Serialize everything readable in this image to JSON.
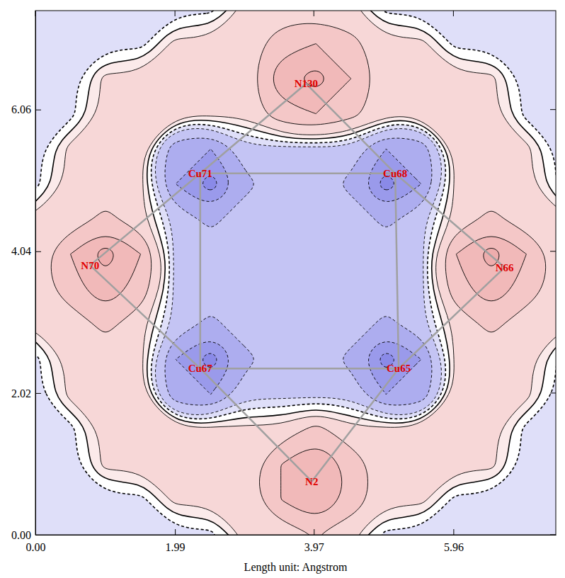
{
  "chart_data": {
    "type": "contour",
    "x_label": "Length unit: Angstrom",
    "xlim": [
      0,
      7.42
    ],
    "ylim": [
      0,
      7.47
    ],
    "xticks": [
      {
        "value": 0,
        "label": "0.00"
      },
      1.99,
      3.97,
      5.96
    ],
    "yticks": [
      {
        "value": 0,
        "label": "0.00"
      },
      2.02,
      4.04,
      6.06
    ],
    "levels": [
      -2.5,
      -1.5,
      -0.8,
      -0.3,
      -0.1,
      0.1,
      0.3,
      0.8,
      1.5,
      2.5
    ],
    "field": {
      "x": [
        0,
        0.5,
        1,
        1.5,
        2,
        2.5,
        3,
        3.5,
        4,
        4.5,
        5,
        5.5,
        6,
        6.5,
        7,
        7.5
      ],
      "y": [
        0,
        0.5,
        1,
        1.5,
        2,
        2.5,
        3,
        3.5,
        4,
        4.5,
        5,
        5.5,
        6,
        6.5,
        7,
        7.5
      ],
      "values": [
        [
          -0.2,
          -0.2,
          -0.2,
          -0.2,
          -0.2,
          -0.2,
          0.4,
          0.4,
          0.8,
          0.4,
          -0.2,
          -0.2,
          -0.2,
          -0.2,
          -0.2,
          -0.2
        ],
        [
          -0.2,
          -0.2,
          -0.2,
          -0.2,
          0.4,
          0.4,
          0.4,
          1.5,
          2.5,
          1.2,
          0.4,
          0.4,
          -0.2,
          -0.2,
          -0.2,
          -0.2
        ],
        [
          -0.2,
          -0.2,
          0.4,
          0.4,
          0.4,
          0.4,
          0.4,
          1.5,
          2.5,
          1.2,
          0.4,
          0.4,
          0.4,
          0.4,
          -0.2,
          -0.2
        ],
        [
          -0.2,
          -0.2,
          0.4,
          0.4,
          0.4,
          0.4,
          0.4,
          0.4,
          1,
          0.4,
          0.4,
          0.4,
          0.4,
          0.4,
          -0.2,
          -0.2
        ],
        [
          -0.2,
          0.4,
          0.4,
          0.4,
          -1.2,
          -1.5,
          -0.4,
          -0.4,
          -0.4,
          -0.4,
          -1.5,
          -1.2,
          0.4,
          0.4,
          0.4,
          -0.2
        ],
        [
          -0.2,
          0.4,
          0.4,
          0.4,
          -1.5,
          -3,
          -1,
          -0.4,
          -0.4,
          -1,
          -3,
          -1.5,
          0.4,
          0.4,
          0.4,
          -0.2
        ],
        [
          0.4,
          0.4,
          1,
          0.4,
          -0.4,
          -1,
          -0.4,
          -0.4,
          -0.4,
          -0.4,
          -1,
          -0.4,
          0.4,
          1,
          0.4,
          0.4
        ],
        [
          0.4,
          1.2,
          2,
          1.2,
          -0.4,
          -0.4,
          -0.4,
          -0.4,
          -0.4,
          -0.4,
          -0.4,
          -0.4,
          1.2,
          2,
          1.2,
          0.4
        ],
        [
          0.4,
          1.5,
          3,
          1.5,
          -0.4,
          -0.4,
          -0.4,
          -0.4,
          -0.4,
          -0.4,
          -0.4,
          -0.4,
          1.5,
          3,
          1.5,
          0.4
        ],
        [
          0.4,
          0.4,
          1,
          0.4,
          -0.4,
          -1,
          -0.4,
          -0.4,
          -0.4,
          -0.4,
          -1,
          -0.4,
          0.4,
          1,
          0.4,
          0.4
        ],
        [
          -0.2,
          0.4,
          0.4,
          0.4,
          -1.5,
          -3,
          -1,
          -0.4,
          -0.4,
          -1,
          -3,
          -1.5,
          0.4,
          0.4,
          0.4,
          -0.2
        ],
        [
          -0.2,
          0.4,
          0.4,
          0.4,
          -1.2,
          -1.5,
          -0.4,
          -0.4,
          -0.4,
          -0.4,
          -1.5,
          -1.2,
          0.4,
          0.4,
          0.4,
          -0.2
        ],
        [
          -0.2,
          -0.2,
          0.4,
          0.4,
          0.4,
          0.4,
          0.4,
          1.2,
          1.5,
          1,
          0.4,
          0.4,
          0.4,
          0.4,
          -0.2,
          -0.2
        ],
        [
          -0.2,
          -0.2,
          0.4,
          0.4,
          0.4,
          0.4,
          0.4,
          2,
          3,
          1.5,
          0.4,
          0.4,
          0.4,
          0.4,
          -0.2,
          -0.2
        ],
        [
          -0.2,
          -0.2,
          -0.2,
          -0.2,
          0.4,
          0.4,
          0.4,
          1.2,
          1.5,
          1,
          0.4,
          0.4,
          -0.2,
          -0.2,
          -0.2,
          -0.2
        ],
        [
          -0.2,
          -0.2,
          -0.2,
          -0.2,
          -0.2,
          -0.2,
          0.4,
          0.4,
          0.4,
          0.4,
          -0.2,
          -0.2,
          -0.2,
          -0.2,
          -0.2,
          -0.2
        ]
      ]
    },
    "atoms": [
      {
        "label": "N130",
        "x": 3.86,
        "y": 6.43
      },
      {
        "label": "Cu71",
        "x": 2.35,
        "y": 5.15
      },
      {
        "label": "Cu68",
        "x": 5.13,
        "y": 5.15
      },
      {
        "label": "N70",
        "x": 0.78,
        "y": 3.84
      },
      {
        "label": "N66",
        "x": 6.69,
        "y": 3.81
      },
      {
        "label": "Cu67",
        "x": 2.35,
        "y": 2.37
      },
      {
        "label": "Cu65",
        "x": 5.18,
        "y": 2.37
      },
      {
        "label": "N2",
        "x": 3.94,
        "y": 0.76
      }
    ],
    "bonds": [
      [
        "N130",
        "Cu71"
      ],
      [
        "N130",
        "Cu68"
      ],
      [
        "Cu71",
        "Cu68"
      ],
      [
        "Cu71",
        "Cu67"
      ],
      [
        "Cu68",
        "Cu65"
      ],
      [
        "Cu67",
        "Cu65"
      ],
      [
        "N70",
        "Cu71"
      ],
      [
        "N70",
        "Cu67"
      ],
      [
        "N66",
        "Cu68"
      ],
      [
        "N66",
        "Cu65"
      ],
      [
        "N2",
        "Cu67"
      ],
      [
        "N2",
        "Cu65"
      ]
    ]
  }
}
